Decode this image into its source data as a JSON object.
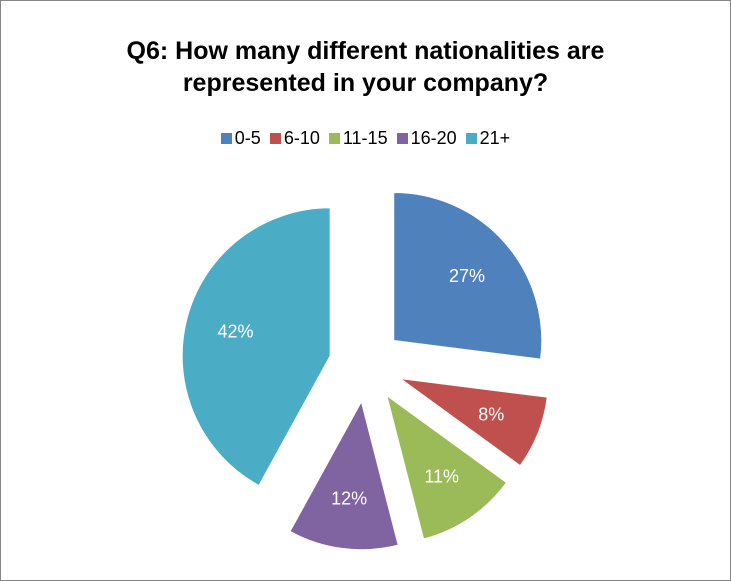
{
  "chart_data": {
    "type": "pie",
    "title_lines": [
      "Q6: How many different nationalities are",
      "represented in your company?"
    ],
    "legend_position": "top",
    "exploded": true,
    "categories": [
      "0-5",
      "6-10",
      "11-15",
      "16-20",
      "21+"
    ],
    "values": [
      27,
      8,
      11,
      12,
      42
    ],
    "labels": [
      "27%",
      "8%",
      "11%",
      "12%",
      "42%"
    ],
    "colors": [
      "#4F81BD",
      "#C0504D",
      "#9BBB59",
      "#8064A2",
      "#4BACC6"
    ]
  }
}
